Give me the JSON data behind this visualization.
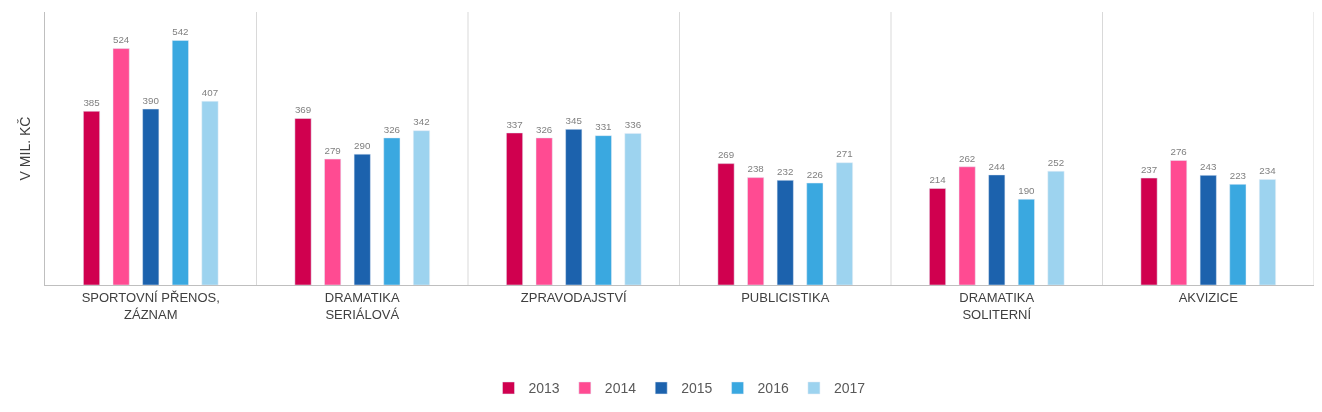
{
  "chart_data": {
    "type": "bar",
    "ylabel": "V MIL. KČ",
    "categories": [
      "SPORTOVNÍ PŘENOS, ZÁZNAM",
      "DRAMATIKA SERIÁLOVÁ",
      "ZPRAVODAJSTVÍ",
      "PUBLICISTIKA",
      "DRAMATIKA SOLITERNÍ",
      "AKVIZICE"
    ],
    "series": [
      {
        "name": "2013",
        "color": "#d0004f",
        "values": [
          385,
          369,
          337,
          269,
          214,
          237
        ]
      },
      {
        "name": "2014",
        "color": "#ff4b92",
        "values": [
          524,
          279,
          326,
          238,
          262,
          276
        ]
      },
      {
        "name": "2015",
        "color": "#1c62ad",
        "values": [
          390,
          290,
          345,
          232,
          244,
          243
        ]
      },
      {
        "name": "2016",
        "color": "#3aa8e0",
        "values": [
          542,
          326,
          331,
          226,
          190,
          223
        ]
      },
      {
        "name": "2017",
        "color": "#9dd3ef",
        "values": [
          407,
          342,
          336,
          271,
          252,
          234
        ]
      }
    ],
    "ylim": [
      0,
      605
    ],
    "data_labels": true,
    "tick_labels": "x",
    "grid": "x",
    "legend": "bottom"
  }
}
